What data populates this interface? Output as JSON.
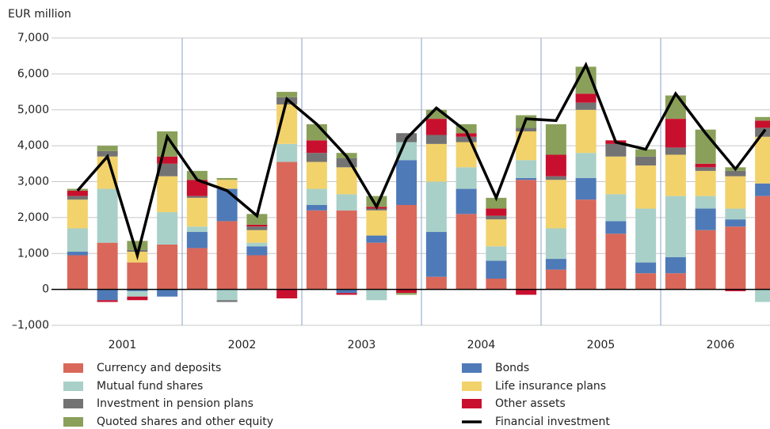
{
  "chart_data": {
    "type": "stacked-bar-line",
    "y_label": "EUR million",
    "categories": [
      null,
      null,
      null,
      null,
      null,
      null,
      null,
      null,
      null,
      null,
      null,
      null,
      null,
      null,
      null,
      null,
      null,
      null,
      null,
      null,
      null,
      null,
      null,
      null
    ],
    "x_group_labels": [
      "2001",
      "2002",
      "2003",
      "2004",
      "2005",
      "2006"
    ],
    "series": [
      {
        "name": "Currency and deposits",
        "color": "#d9685a",
        "values": [
          950,
          1300,
          750,
          1250,
          1150,
          1900,
          950,
          3550,
          2200,
          2200,
          1300,
          2350,
          350,
          2100,
          300,
          3050,
          550,
          2500,
          1550,
          450,
          450,
          1650,
          1750,
          2600
        ]
      },
      {
        "name": "Bonds",
        "color": "#4f7ab8",
        "values": [
          100,
          -300,
          -50,
          -200,
          450,
          900,
          250,
          0,
          150,
          -100,
          200,
          1250,
          1250,
          700,
          500,
          50,
          300,
          600,
          350,
          300,
          450,
          600,
          200,
          350
        ]
      },
      {
        "name": "Mutual fund shares",
        "color": "#a8d0c8",
        "values": [
          650,
          1500,
          -150,
          900,
          150,
          -300,
          100,
          500,
          450,
          450,
          -300,
          500,
          1400,
          600,
          400,
          500,
          850,
          700,
          750,
          1500,
          1700,
          350,
          300,
          -350
        ]
      },
      {
        "name": "Life insurance plans",
        "color": "#f2d26b",
        "values": [
          800,
          900,
          300,
          1000,
          800,
          250,
          350,
          1100,
          750,
          750,
          700,
          0,
          1050,
          700,
          750,
          800,
          1350,
          1200,
          1050,
          1200,
          1150,
          700,
          900,
          1300
        ]
      },
      {
        "name": "Investment in pension plans",
        "color": "#737373",
        "values": [
          100,
          150,
          50,
          350,
          50,
          -50,
          100,
          200,
          250,
          250,
          50,
          250,
          250,
          150,
          100,
          100,
          100,
          200,
          350,
          250,
          200,
          100,
          150,
          250
        ]
      },
      {
        "name": "Other assets",
        "color": "#c8102e",
        "values": [
          150,
          -50,
          -100,
          200,
          450,
          0,
          50,
          -250,
          350,
          -50,
          50,
          -100,
          450,
          100,
          200,
          -150,
          600,
          250,
          100,
          0,
          800,
          100,
          -50,
          200
        ]
      },
      {
        "name": "Quoted shares and other equity",
        "color": "#8aa05a",
        "values": [
          50,
          150,
          250,
          700,
          250,
          50,
          300,
          150,
          450,
          150,
          300,
          -50,
          250,
          250,
          300,
          350,
          850,
          750,
          0,
          200,
          650,
          950,
          100,
          100
        ]
      }
    ],
    "line": {
      "name": "Financial investment",
      "color": "#000000",
      "values": [
        2750,
        3700,
        950,
        4250,
        3050,
        2750,
        2050,
        5300,
        4600,
        3700,
        2300,
        4200,
        5050,
        4400,
        2550,
        4750,
        4700,
        6250,
        4100,
        3900,
        5450,
        4350,
        3350,
        4450
      ]
    },
    "ylim": [
      -1000,
      7000
    ],
    "yticks": [
      {
        "value": -1000,
        "label": "–1,000"
      },
      0,
      {
        "value": 1000,
        "label": "1,000"
      },
      {
        "value": 2000,
        "label": "2,000"
      },
      {
        "value": 3000,
        "label": "3,000"
      },
      {
        "value": 4000,
        "label": "4,000"
      },
      {
        "value": 5000,
        "label": "5,000"
      },
      {
        "value": 6000,
        "label": "6,000"
      },
      {
        "value": 7000,
        "label": "7,000"
      }
    ],
    "grid": true
  }
}
